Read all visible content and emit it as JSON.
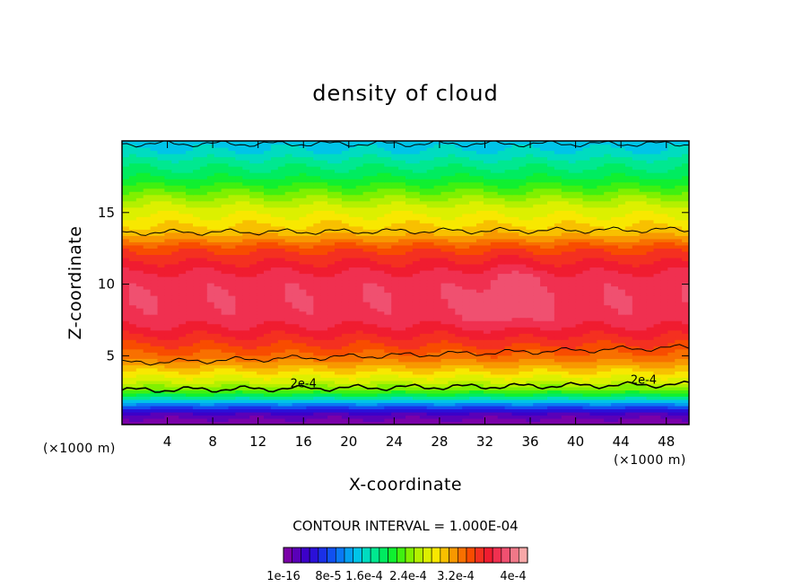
{
  "chart_data": {
    "type": "heatmap",
    "title": "density of cloud",
    "xlabel": "X-coordinate",
    "ylabel": "Z-coordinate",
    "x_unit": "(×1000 m)",
    "x_unit_right": "(×1000 m)",
    "xlim": [
      0,
      50
    ],
    "ylim": [
      0.2,
      20
    ],
    "x_ticks": [
      4,
      8,
      12,
      16,
      20,
      24,
      28,
      32,
      36,
      40,
      44,
      48
    ],
    "x_tick_labels": [
      "4",
      "8",
      "12",
      "16",
      "20",
      "24",
      "28",
      "32",
      "36",
      "40",
      "44",
      "48"
    ],
    "y_ticks": [
      5,
      10,
      15
    ],
    "y_tick_labels": [
      "5",
      "10",
      "15"
    ],
    "contour_interval": "CONTOUR INTERVAL = 1.000E-04",
    "contour_label": "2e-4",
    "colorbar": {
      "min": 1e-16,
      "max": 0.0004,
      "tick_labels": [
        "1e-16",
        "8e-5",
        "1.6e-4",
        "2.4e-4",
        "3.2e-4",
        "4e-4"
      ],
      "colors": [
        "#7a00a8",
        "#5a00b8",
        "#3c00c8",
        "#2a10d8",
        "#1a30e8",
        "#1050f0",
        "#0a78f4",
        "#04a0f0",
        "#00c4e8",
        "#00dcc0",
        "#00e890",
        "#00ec60",
        "#10f030",
        "#40f010",
        "#80f000",
        "#b4f000",
        "#dcf000",
        "#f8e800",
        "#f8c000",
        "#f89800",
        "#f87000",
        "#f84c00",
        "#f43020",
        "#f01c30",
        "#f03050",
        "#f05070",
        "#f07888",
        "#f8a8a8"
      ]
    },
    "profile_description": "cloud density vs height, roughly uniform along x",
    "profile_z": [
      0.3,
      1.0,
      1.5,
      2.0,
      2.6,
      3.2,
      4.0,
      4.8,
      5.6,
      6.5,
      7.5,
      9.0,
      10.5,
      11.5,
      12.5,
      13.5,
      14.5,
      15.5,
      16.5,
      17.5,
      18.5,
      19.3,
      20.0
    ],
    "profile_val": [
      0.0,
      3e-05,
      8e-05,
      0.00014,
      0.0002,
      0.00023,
      0.00026,
      0.00029,
      0.00031,
      0.00033,
      0.00035,
      0.000355,
      0.00035,
      0.00033,
      0.00031,
      0.00027,
      0.00025,
      0.00023,
      0.0002,
      0.00017,
      0.00015,
      0.00013,
      0.00012
    ],
    "contour_lines": [
      {
        "level": 0.0002,
        "z_start": 2.6,
        "z_end": 3.0,
        "labeled": true
      },
      {
        "level": 0.0003,
        "z_start": 4.5,
        "z_end": 5.6,
        "labeled": false
      },
      {
        "level": 0.0003,
        "z_start": 13.6,
        "z_end": 13.8,
        "labeled": false
      },
      {
        "level": 0.00012,
        "z_start": 19.8,
        "z_end": 19.8,
        "labeled": false
      }
    ]
  }
}
